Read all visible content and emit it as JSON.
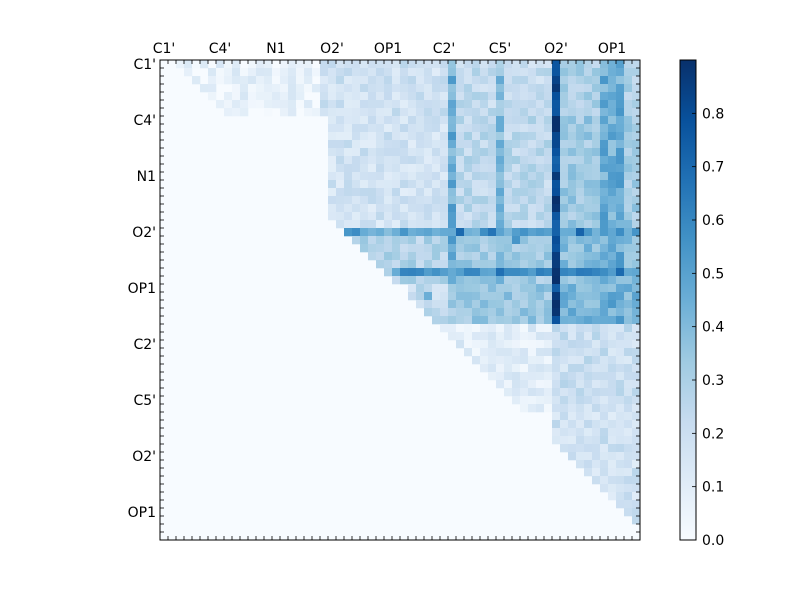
{
  "chart_data": {
    "type": "heatmap",
    "title": "",
    "xlabel": "",
    "ylabel": "",
    "n": 60,
    "x_tick_labels": [
      "C1'",
      "C4'",
      "N1",
      "O2'",
      "OP1",
      "C2'",
      "C5'",
      "O2'",
      "OP1"
    ],
    "y_tick_labels": [
      "C1'",
      "C4'",
      "N1",
      "O2'",
      "OP1",
      "C2'",
      "C5'",
      "O2'",
      "OP1"
    ],
    "label_rows": [
      0,
      7,
      14,
      21,
      28,
      35,
      42,
      49,
      56
    ],
    "x_label_cols": [
      0,
      7,
      14,
      21,
      28,
      35,
      42,
      49,
      56
    ],
    "colormap": "Blues",
    "colors": {
      "low": "#f7fbff",
      "high": "#08306b"
    },
    "value_range": [
      0.0,
      0.9
    ],
    "colorbar_ticks": [
      "0.0",
      "0.1",
      "0.2",
      "0.3",
      "0.4",
      "0.5",
      "0.6",
      "0.7",
      "0.8"
    ],
    "colorbar_tick_values": [
      0.0,
      0.1,
      0.2,
      0.3,
      0.4,
      0.5,
      0.6,
      0.7,
      0.8
    ],
    "blocks": [
      {
        "rows": [
          0,
          7
        ],
        "cols": [
          2,
          20
        ],
        "value": 0.07
      },
      {
        "rows": [
          0,
          7
        ],
        "cols": [
          20,
          36
        ],
        "value": 0.18
      },
      {
        "rows": [
          0,
          7
        ],
        "cols": [
          36,
          49
        ],
        "value": 0.22
      },
      {
        "rows": [
          0,
          7
        ],
        "cols": [
          49,
          60
        ],
        "value": 0.3
      },
      {
        "rows": [
          7,
          21
        ],
        "cols": [
          21,
          36
        ],
        "value": 0.17
      },
      {
        "rows": [
          7,
          21
        ],
        "cols": [
          36,
          49
        ],
        "value": 0.24
      },
      {
        "rows": [
          7,
          21
        ],
        "cols": [
          49,
          60
        ],
        "value": 0.33
      },
      {
        "rows": [
          21,
          28
        ],
        "cols": [
          23,
          36
        ],
        "value": 0.27
      },
      {
        "rows": [
          21,
          28
        ],
        "cols": [
          36,
          49
        ],
        "value": 0.32
      },
      {
        "rows": [
          21,
          28
        ],
        "cols": [
          49,
          60
        ],
        "value": 0.38
      },
      {
        "rows": [
          28,
          33
        ],
        "cols": [
          31,
          36
        ],
        "value": 0.22
      },
      {
        "rows": [
          28,
          33
        ],
        "cols": [
          36,
          49
        ],
        "value": 0.34
      },
      {
        "rows": [
          28,
          33
        ],
        "cols": [
          49,
          60
        ],
        "value": 0.42
      },
      {
        "rows": [
          33,
          44
        ],
        "cols": [
          35,
          49
        ],
        "value": 0.1
      },
      {
        "rows": [
          33,
          44
        ],
        "cols": [
          49,
          60
        ],
        "value": 0.2
      },
      {
        "rows": [
          44,
          58
        ],
        "cols": [
          49,
          60
        ],
        "value": 0.18
      }
    ],
    "stripes": [
      {
        "cols": [
          36,
          37
        ],
        "rows": [
          0,
          28
        ],
        "value": 0.45
      },
      {
        "cols": [
          42,
          43
        ],
        "rows": [
          0,
          28
        ],
        "value": 0.38
      },
      {
        "cols": [
          49,
          50
        ],
        "rows": [
          0,
          33
        ],
        "value": 0.82
      },
      {
        "cols": [
          55,
          58
        ],
        "rows": [
          0,
          33
        ],
        "value": 0.45
      },
      {
        "rows": [
          21,
          22
        ],
        "cols": [
          23,
          60
        ],
        "value": 0.48
      },
      {
        "rows": [
          26,
          27
        ],
        "cols": [
          29,
          60
        ],
        "value": 0.55
      }
    ],
    "peaks": [
      {
        "r": 21,
        "c": 37,
        "v": 0.7
      },
      {
        "r": 21,
        "c": 41,
        "v": 0.66
      },
      {
        "r": 21,
        "c": 52,
        "v": 0.72
      },
      {
        "r": 18,
        "c": 49,
        "v": 0.88
      },
      {
        "r": 25,
        "c": 49,
        "v": 0.86
      },
      {
        "r": 26,
        "c": 42,
        "v": 0.68
      },
      {
        "r": 26,
        "c": 57,
        "v": 0.7
      },
      {
        "r": 30,
        "c": 49,
        "v": 0.9
      },
      {
        "r": 11,
        "c": 49,
        "v": 0.78
      },
      {
        "r": 22,
        "c": 44,
        "v": 0.55
      },
      {
        "r": 29,
        "c": 33,
        "v": 0.45
      }
    ]
  }
}
